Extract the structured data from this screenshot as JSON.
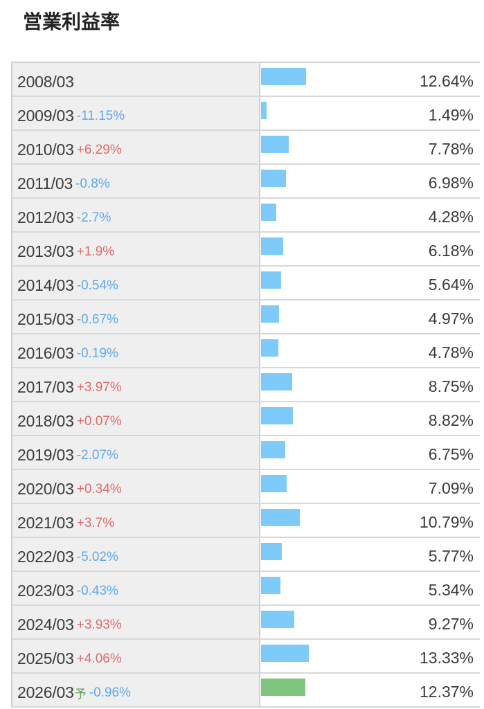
{
  "title": "営業利益率",
  "chart_data": {
    "type": "bar",
    "title": "営業利益率",
    "unit": "%",
    "bar_color": "#7ecbfb",
    "forecast_bar_color": "#7fc57f",
    "up_color": "#e06a6a",
    "down_color": "#5fa8ec",
    "xlim": [
      0,
      60
    ],
    "rows": [
      {
        "period": "2008/03",
        "forecast": "",
        "change": "",
        "direction": "",
        "value": 12.64,
        "value_label": "12.64%",
        "is_forecast": false
      },
      {
        "period": "2009/03",
        "forecast": "",
        "change": "-11.15%",
        "direction": "down",
        "value": 1.49,
        "value_label": "1.49%",
        "is_forecast": false
      },
      {
        "period": "2010/03",
        "forecast": "",
        "change": "+6.29%",
        "direction": "up",
        "value": 7.78,
        "value_label": "7.78%",
        "is_forecast": false
      },
      {
        "period": "2011/03",
        "forecast": "",
        "change": "-0.8%",
        "direction": "down",
        "value": 6.98,
        "value_label": "6.98%",
        "is_forecast": false
      },
      {
        "period": "2012/03",
        "forecast": "",
        "change": "-2.7%",
        "direction": "down",
        "value": 4.28,
        "value_label": "4.28%",
        "is_forecast": false
      },
      {
        "period": "2013/03",
        "forecast": "",
        "change": "+1.9%",
        "direction": "up",
        "value": 6.18,
        "value_label": "6.18%",
        "is_forecast": false
      },
      {
        "period": "2014/03",
        "forecast": "",
        "change": "-0.54%",
        "direction": "down",
        "value": 5.64,
        "value_label": "5.64%",
        "is_forecast": false
      },
      {
        "period": "2015/03",
        "forecast": "",
        "change": "-0.67%",
        "direction": "down",
        "value": 4.97,
        "value_label": "4.97%",
        "is_forecast": false
      },
      {
        "period": "2016/03",
        "forecast": "",
        "change": "-0.19%",
        "direction": "down",
        "value": 4.78,
        "value_label": "4.78%",
        "is_forecast": false
      },
      {
        "period": "2017/03",
        "forecast": "",
        "change": "+3.97%",
        "direction": "up",
        "value": 8.75,
        "value_label": "8.75%",
        "is_forecast": false
      },
      {
        "period": "2018/03",
        "forecast": "",
        "change": "+0.07%",
        "direction": "up",
        "value": 8.82,
        "value_label": "8.82%",
        "is_forecast": false
      },
      {
        "period": "2019/03",
        "forecast": "",
        "change": "-2.07%",
        "direction": "down",
        "value": 6.75,
        "value_label": "6.75%",
        "is_forecast": false
      },
      {
        "period": "2020/03",
        "forecast": "",
        "change": "+0.34%",
        "direction": "up",
        "value": 7.09,
        "value_label": "7.09%",
        "is_forecast": false
      },
      {
        "period": "2021/03",
        "forecast": "",
        "change": "+3.7%",
        "direction": "up",
        "value": 10.79,
        "value_label": "10.79%",
        "is_forecast": false
      },
      {
        "period": "2022/03",
        "forecast": "",
        "change": "-5.02%",
        "direction": "down",
        "value": 5.77,
        "value_label": "5.77%",
        "is_forecast": false
      },
      {
        "period": "2023/03",
        "forecast": "",
        "change": "-0.43%",
        "direction": "down",
        "value": 5.34,
        "value_label": "5.34%",
        "is_forecast": false
      },
      {
        "period": "2024/03",
        "forecast": "",
        "change": "+3.93%",
        "direction": "up",
        "value": 9.27,
        "value_label": "9.27%",
        "is_forecast": false
      },
      {
        "period": "2025/03",
        "forecast": "",
        "change": "+4.06%",
        "direction": "up",
        "value": 13.33,
        "value_label": "13.33%",
        "is_forecast": false
      },
      {
        "period": "2026/03",
        "forecast": "予",
        "change": "-0.96%",
        "direction": "down",
        "value": 12.37,
        "value_label": "12.37%",
        "is_forecast": true
      }
    ]
  }
}
